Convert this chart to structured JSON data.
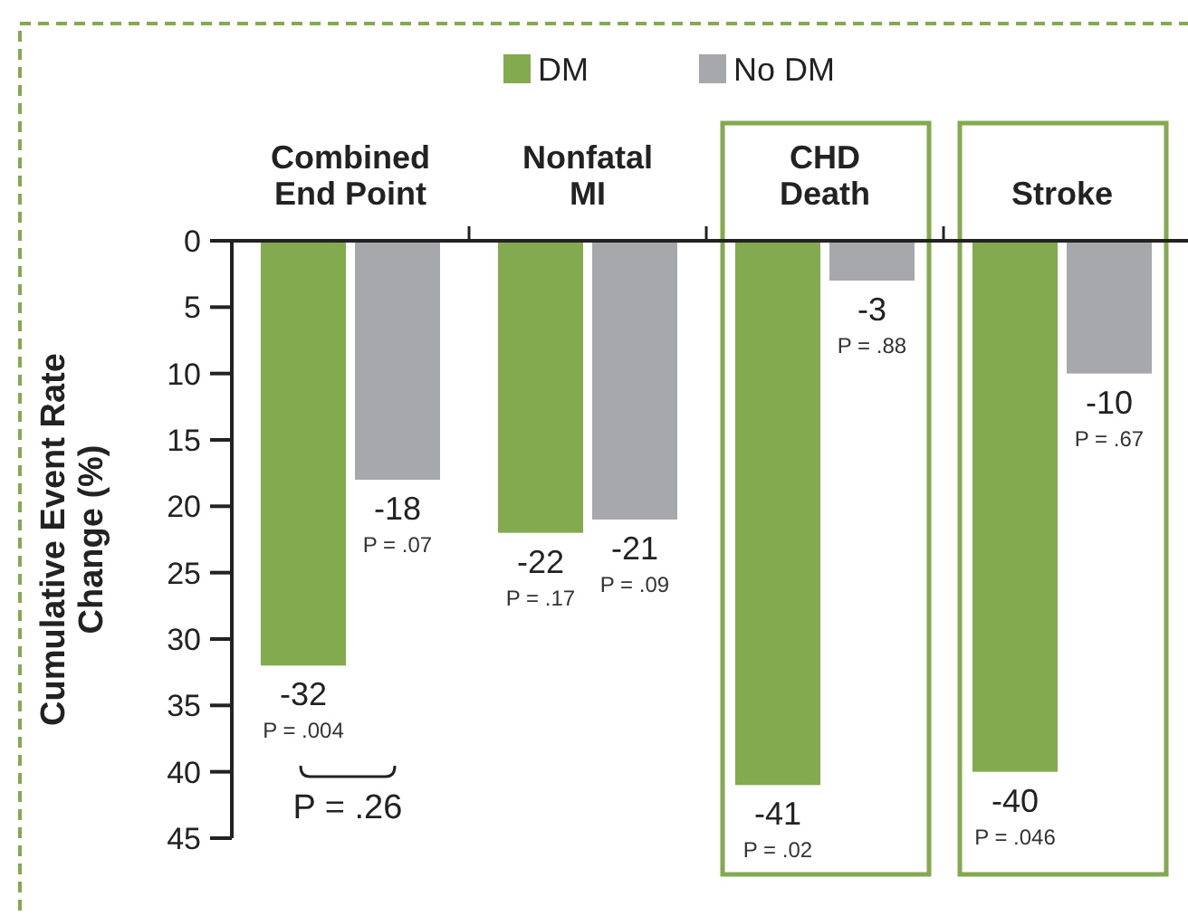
{
  "chart_data": {
    "type": "bar",
    "ylabel": "Cumulative Event Rate\nChange (%)",
    "categories": [
      "Combined\nEnd Point",
      "Nonfatal\nMI",
      "CHD\nDeath",
      "Stroke"
    ],
    "series": [
      {
        "name": "DM",
        "color": "#84aa4f",
        "values": [
          -32,
          -22,
          -41,
          -40
        ]
      },
      {
        "name": "No DM",
        "color": "#a7a8ac",
        "values": [
          -18,
          -21,
          -3,
          -10
        ]
      }
    ],
    "ylim": [
      -45,
      0
    ],
    "yticks": [
      {
        "value": 0,
        "label": "0"
      },
      {
        "value": -5,
        "label": "5"
      },
      {
        "value": -10,
        "label": "10"
      },
      {
        "value": -15,
        "label": "15"
      },
      {
        "value": -20,
        "label": "20"
      },
      {
        "value": -25,
        "label": "25"
      },
      {
        "value": -30,
        "label": "30"
      },
      {
        "value": -35,
        "label": "35"
      },
      {
        "value": -40,
        "label": "40"
      },
      {
        "value": -45,
        "label": "45"
      }
    ],
    "data_labels": true,
    "legend": "top",
    "annotations": [
      {
        "text": "P = .004",
        "x": "Combined\nEnd Point",
        "y": -32
      },
      {
        "text": "P = .07",
        "x": "Combined\nEnd Point",
        "y": -18
      },
      {
        "text": "P = .17",
        "x": "Nonfatal\nMI",
        "y": -22
      },
      {
        "text": "P = .09",
        "x": "Nonfatal\nMI",
        "y": -21
      },
      {
        "text": "P = .02",
        "x": "CHD\nDeath",
        "y": -41
      },
      {
        "text": "P = .88",
        "x": "CHD\nDeath",
        "y": -3
      },
      {
        "text": "P = .046",
        "x": "Stroke",
        "y": -40
      },
      {
        "text": "P = .67",
        "x": "Stroke",
        "y": -10
      },
      "P = .26"
    ]
  }
}
